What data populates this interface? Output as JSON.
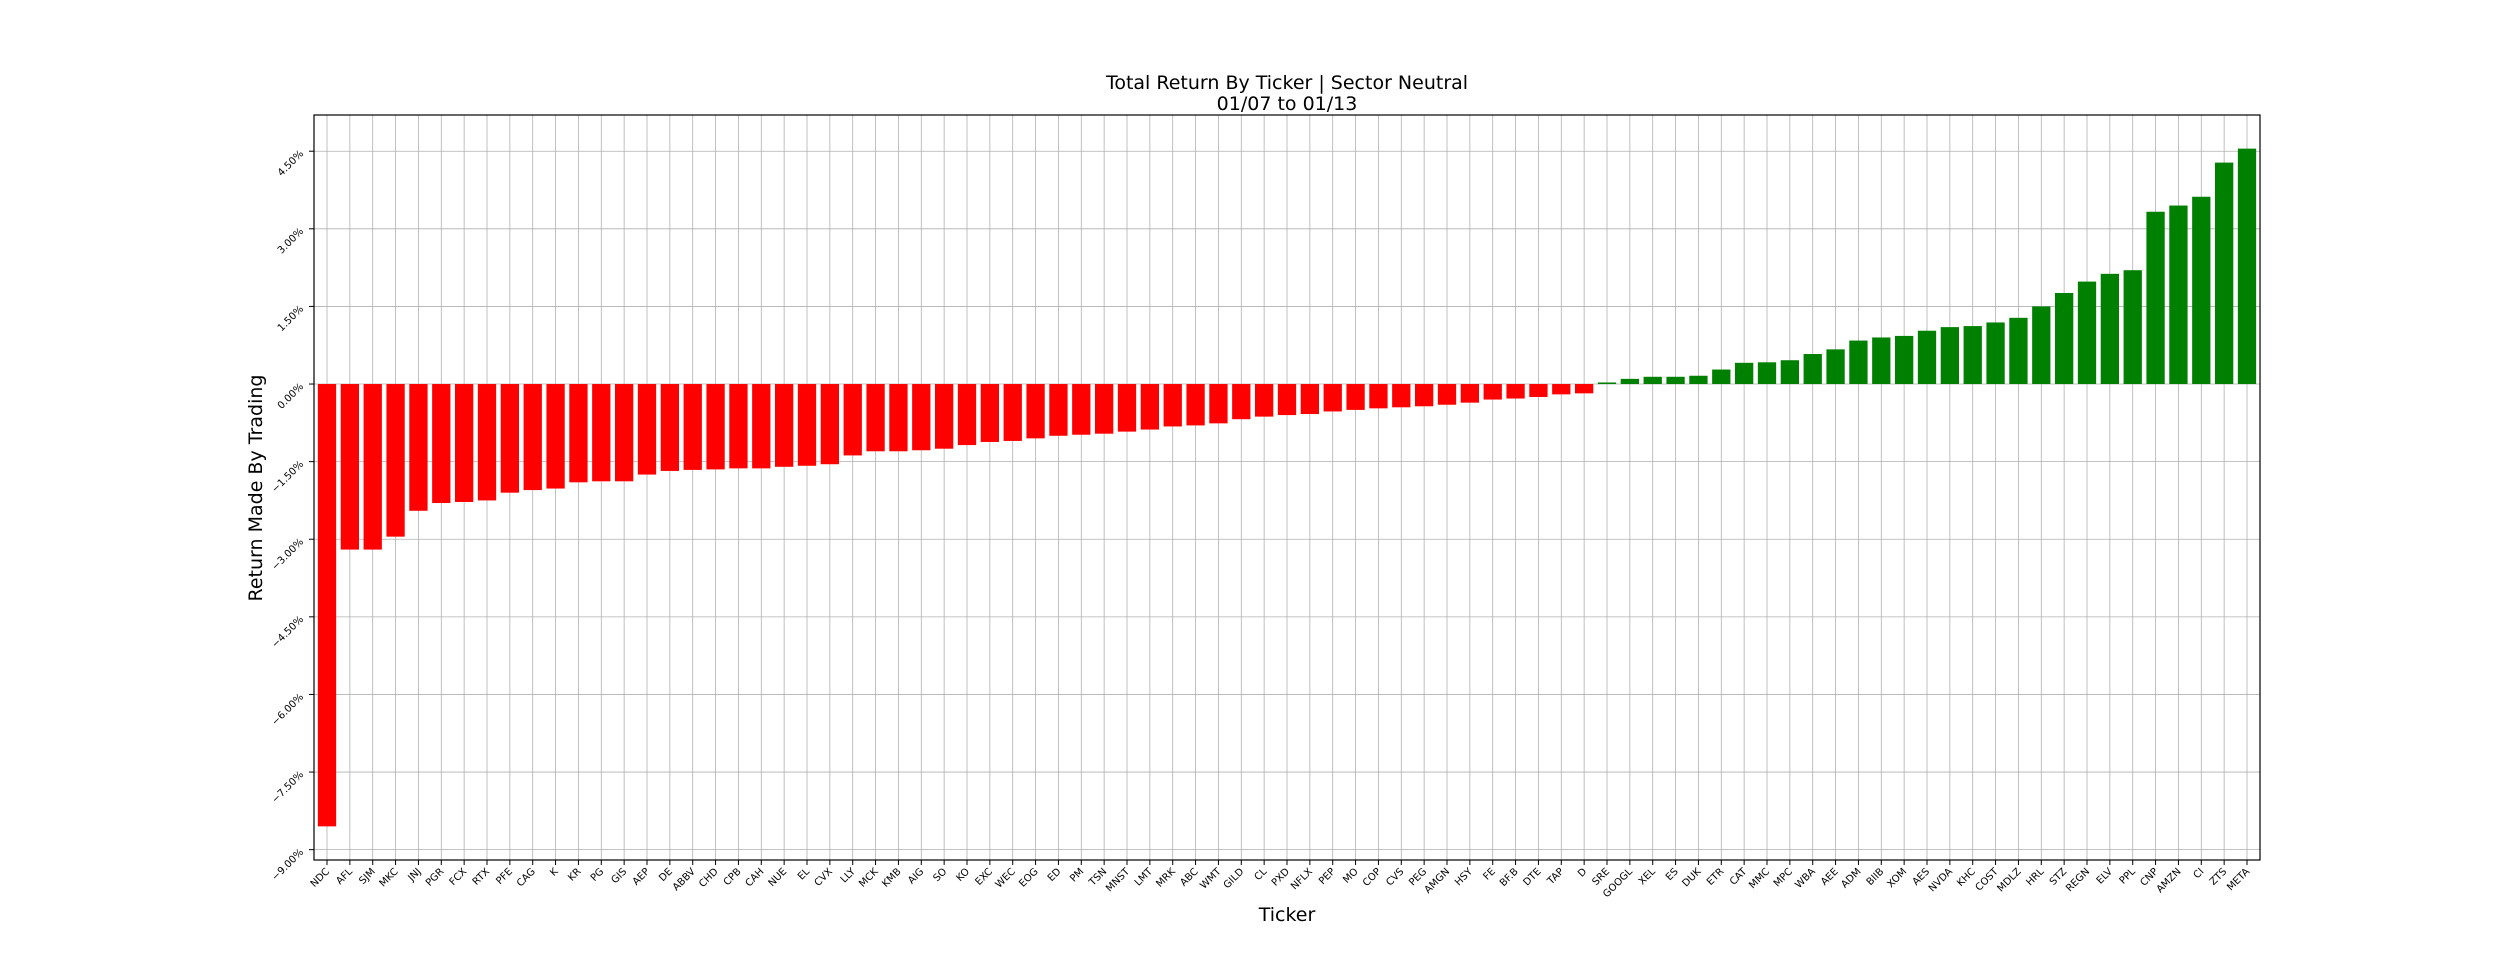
{
  "chart_data": {
    "type": "bar",
    "title": "Total Return By Ticker | Sector Neutral",
    "subtitle": "01/07 to 01/13",
    "xlabel": "Ticker",
    "ylabel": "Return Made By Trading",
    "ylim": [
      -9.2,
      5.2
    ],
    "yticks": [
      -9.0,
      -7.5,
      -6.0,
      -4.5,
      -3.0,
      -1.5,
      0.0,
      1.5,
      3.0,
      4.5
    ],
    "ytick_labels": [
      "−9.00%",
      "−7.50%",
      "−6.00%",
      "−4.50%",
      "−3.00%",
      "−1.50%",
      "0.00%",
      "1.50%",
      "3.00%",
      "4.50%"
    ],
    "grid": true,
    "colors": {
      "negative": "#ff0000",
      "positive": "#008000"
    },
    "categories": [
      "NDC",
      "AFL",
      "SJM",
      "MKC",
      "JNJ",
      "PGR",
      "FCX",
      "RTX",
      "PFE",
      "CAG",
      "K",
      "KR",
      "PG",
      "GIS",
      "AEP",
      "DE",
      "ABBV",
      "CHD",
      "CPB",
      "CAH",
      "NUE",
      "EL",
      "CVX",
      "LLY",
      "MCK",
      "KMB",
      "AIG",
      "SO",
      "KO",
      "EXC",
      "WEC",
      "EOG",
      "ED",
      "PM",
      "TSN",
      "MNST",
      "LMT",
      "MRK",
      "ABC",
      "WMT",
      "GILD",
      "CL",
      "PXD",
      "NFLX",
      "PEP",
      "MO",
      "COP",
      "CVS",
      "PEG",
      "AMGN",
      "HSY",
      "FE",
      "BF.B",
      "DTE",
      "TAP",
      "D",
      "SRE",
      "GOOGL",
      "XEL",
      "ES",
      "DUK",
      "ETR",
      "CAT",
      "MMC",
      "MPC",
      "WBA",
      "AEE",
      "ADM",
      "BIIB",
      "XOM",
      "AES",
      "NVDA",
      "KHC",
      "COST",
      "MDLZ",
      "HRL",
      "STZ",
      "REGN",
      "ELV",
      "PPL",
      "CNP",
      "AMZN",
      "CI",
      "ZTS",
      "META"
    ],
    "values": [
      -8.55,
      -3.2,
      -3.2,
      -2.95,
      -2.45,
      -2.3,
      -2.28,
      -2.25,
      -2.1,
      -2.05,
      -2.02,
      -1.9,
      -1.88,
      -1.88,
      -1.75,
      -1.68,
      -1.66,
      -1.65,
      -1.63,
      -1.63,
      -1.6,
      -1.58,
      -1.55,
      -1.38,
      -1.3,
      -1.3,
      -1.28,
      -1.25,
      -1.18,
      -1.12,
      -1.1,
      -1.05,
      -1.0,
      -0.98,
      -0.96,
      -0.92,
      -0.88,
      -0.82,
      -0.8,
      -0.76,
      -0.68,
      -0.63,
      -0.6,
      -0.58,
      -0.53,
      -0.5,
      -0.47,
      -0.45,
      -0.43,
      -0.4,
      -0.36,
      -0.3,
      -0.28,
      -0.25,
      -0.2,
      -0.18,
      0.03,
      0.1,
      0.14,
      0.14,
      0.16,
      0.28,
      0.41,
      0.42,
      0.46,
      0.58,
      0.67,
      0.84,
      0.9,
      0.93,
      1.03,
      1.1,
      1.12,
      1.19,
      1.28,
      1.5,
      1.76,
      1.98,
      2.13,
      2.2,
      3.33,
      3.45,
      3.62,
      4.28,
      4.55
    ]
  }
}
